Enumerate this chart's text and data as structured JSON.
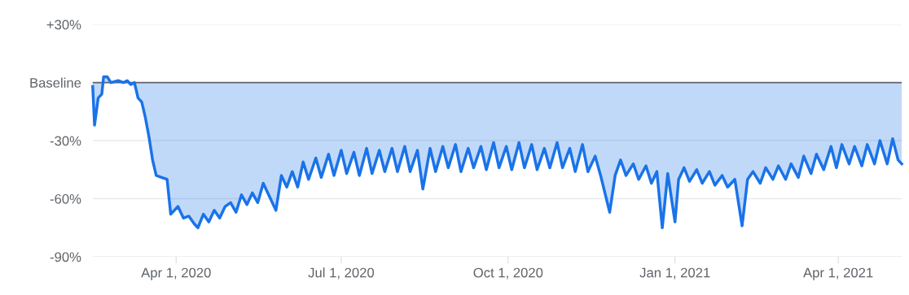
{
  "chart_data": {
    "type": "area",
    "x": [
      "2020-02-15",
      "2020-02-16",
      "2020-02-18",
      "2020-02-20",
      "2020-02-21",
      "2020-02-23",
      "2020-02-25",
      "2020-02-29",
      "2020-03-03",
      "2020-03-05",
      "2020-03-07",
      "2020-03-09",
      "2020-03-11",
      "2020-03-13",
      "2020-03-15",
      "2020-03-17",
      "2020-03-19",
      "2020-03-21",
      "2020-03-24",
      "2020-03-27",
      "2020-03-29",
      "2020-04-02",
      "2020-04-05",
      "2020-04-08",
      "2020-04-11",
      "2020-04-13",
      "2020-04-16",
      "2020-04-19",
      "2020-04-22",
      "2020-04-25",
      "2020-04-28",
      "2020-05-01",
      "2020-05-04",
      "2020-05-07",
      "2020-05-10",
      "2020-05-13",
      "2020-05-16",
      "2020-05-19",
      "2020-05-23",
      "2020-05-26",
      "2020-05-29",
      "2020-06-01",
      "2020-06-04",
      "2020-06-07",
      "2020-06-10",
      "2020-06-13",
      "2020-06-17",
      "2020-06-20",
      "2020-06-24",
      "2020-06-27",
      "2020-07-01",
      "2020-07-04",
      "2020-07-08",
      "2020-07-11",
      "2020-07-15",
      "2020-07-18",
      "2020-07-22",
      "2020-07-25",
      "2020-07-29",
      "2020-08-01",
      "2020-08-05",
      "2020-08-08",
      "2020-08-12",
      "2020-08-15",
      "2020-08-19",
      "2020-08-22",
      "2020-08-26",
      "2020-08-29",
      "2020-09-02",
      "2020-09-05",
      "2020-09-09",
      "2020-09-12",
      "2020-09-16",
      "2020-09-19",
      "2020-09-23",
      "2020-09-26",
      "2020-09-30",
      "2020-10-03",
      "2020-10-07",
      "2020-10-10",
      "2020-10-14",
      "2020-10-17",
      "2020-10-21",
      "2020-10-24",
      "2020-10-28",
      "2020-10-31",
      "2020-11-04",
      "2020-11-07",
      "2020-11-11",
      "2020-11-14",
      "2020-11-18",
      "2020-11-21",
      "2020-11-26",
      "2020-11-29",
      "2020-12-02",
      "2020-12-05",
      "2020-12-09",
      "2020-12-12",
      "2020-12-16",
      "2020-12-19",
      "2020-12-22",
      "2020-12-25",
      "2020-12-28",
      "2021-01-01",
      "2021-01-03",
      "2021-01-06",
      "2021-01-09",
      "2021-01-13",
      "2021-01-16",
      "2021-01-20",
      "2021-01-23",
      "2021-01-27",
      "2021-01-30",
      "2021-02-03",
      "2021-02-07",
      "2021-02-10",
      "2021-02-13",
      "2021-02-17",
      "2021-02-20",
      "2021-02-24",
      "2021-02-27",
      "2021-03-03",
      "2021-03-06",
      "2021-03-10",
      "2021-03-13",
      "2021-03-17",
      "2021-03-20",
      "2021-03-24",
      "2021-03-28",
      "2021-03-31",
      "2021-04-03",
      "2021-04-07",
      "2021-04-10",
      "2021-04-14",
      "2021-04-17",
      "2021-04-21",
      "2021-04-24",
      "2021-04-28",
      "2021-05-01",
      "2021-05-04",
      "2021-05-06"
    ],
    "series": [
      {
        "color": "#1a73e8",
        "values": [
          -2,
          -22,
          -8,
          -6,
          3,
          3,
          0,
          1,
          0,
          1,
          -1,
          0,
          -8,
          -10,
          -18,
          -28,
          -40,
          -48,
          -49,
          -50,
          -68,
          -64,
          -70,
          -69,
          -73,
          -75,
          -68,
          -72,
          -66,
          -70,
          -64,
          -62,
          -67,
          -58,
          -63,
          -57,
          -62,
          -52,
          -60,
          -66,
          -48,
          -54,
          -46,
          -54,
          -41,
          -50,
          -39,
          -49,
          -37,
          -48,
          -35,
          -47,
          -36,
          -48,
          -34,
          -47,
          -35,
          -46,
          -34,
          -46,
          -33,
          -46,
          -35,
          -55,
          -34,
          -46,
          -33,
          -44,
          -32,
          -46,
          -34,
          -44,
          -33,
          -45,
          -31,
          -44,
          -33,
          -45,
          -31,
          -44,
          -32,
          -45,
          -34,
          -44,
          -31,
          -44,
          -34,
          -46,
          -32,
          -46,
          -38,
          -48,
          -67,
          -48,
          -40,
          -48,
          -42,
          -50,
          -43,
          -52,
          -46,
          -75,
          -47,
          -72,
          -50,
          -44,
          -51,
          -45,
          -52,
          -46,
          -53,
          -48,
          -54,
          -50,
          -74,
          -50,
          -46,
          -52,
          -44,
          -50,
          -43,
          -50,
          -42,
          -49,
          -38,
          -47,
          -37,
          -45,
          -33,
          -44,
          -32,
          -42,
          -33,
          -43,
          -32,
          -42,
          -30,
          -42,
          -29,
          -40,
          -42
        ]
      }
    ],
    "xlim": [
      "2020-02-15",
      "2021-05-06"
    ],
    "xticks": [
      {
        "value": "2020-04-01",
        "label": "Apr 1, 2020"
      },
      {
        "value": "2020-07-01",
        "label": "Jul 1, 2020"
      },
      {
        "value": "2020-10-01",
        "label": "Oct 1, 2020"
      },
      {
        "value": "2021-01-01",
        "label": "Jan 1, 2021"
      },
      {
        "value": "2021-04-01",
        "label": "Apr 1, 2021"
      }
    ],
    "ylim": [
      -90,
      30
    ],
    "yticks": [
      {
        "value": 30,
        "label": "+30%"
      },
      {
        "value": 0,
        "label": "Baseline"
      },
      {
        "value": -30,
        "label": "-30%"
      },
      {
        "value": -60,
        "label": "-60%"
      },
      {
        "value": -90,
        "label": "-90%"
      }
    ],
    "ref_lines": [
      {
        "axis": "y",
        "value": 0,
        "color": "#5f6368"
      }
    ],
    "grid": "y"
  }
}
